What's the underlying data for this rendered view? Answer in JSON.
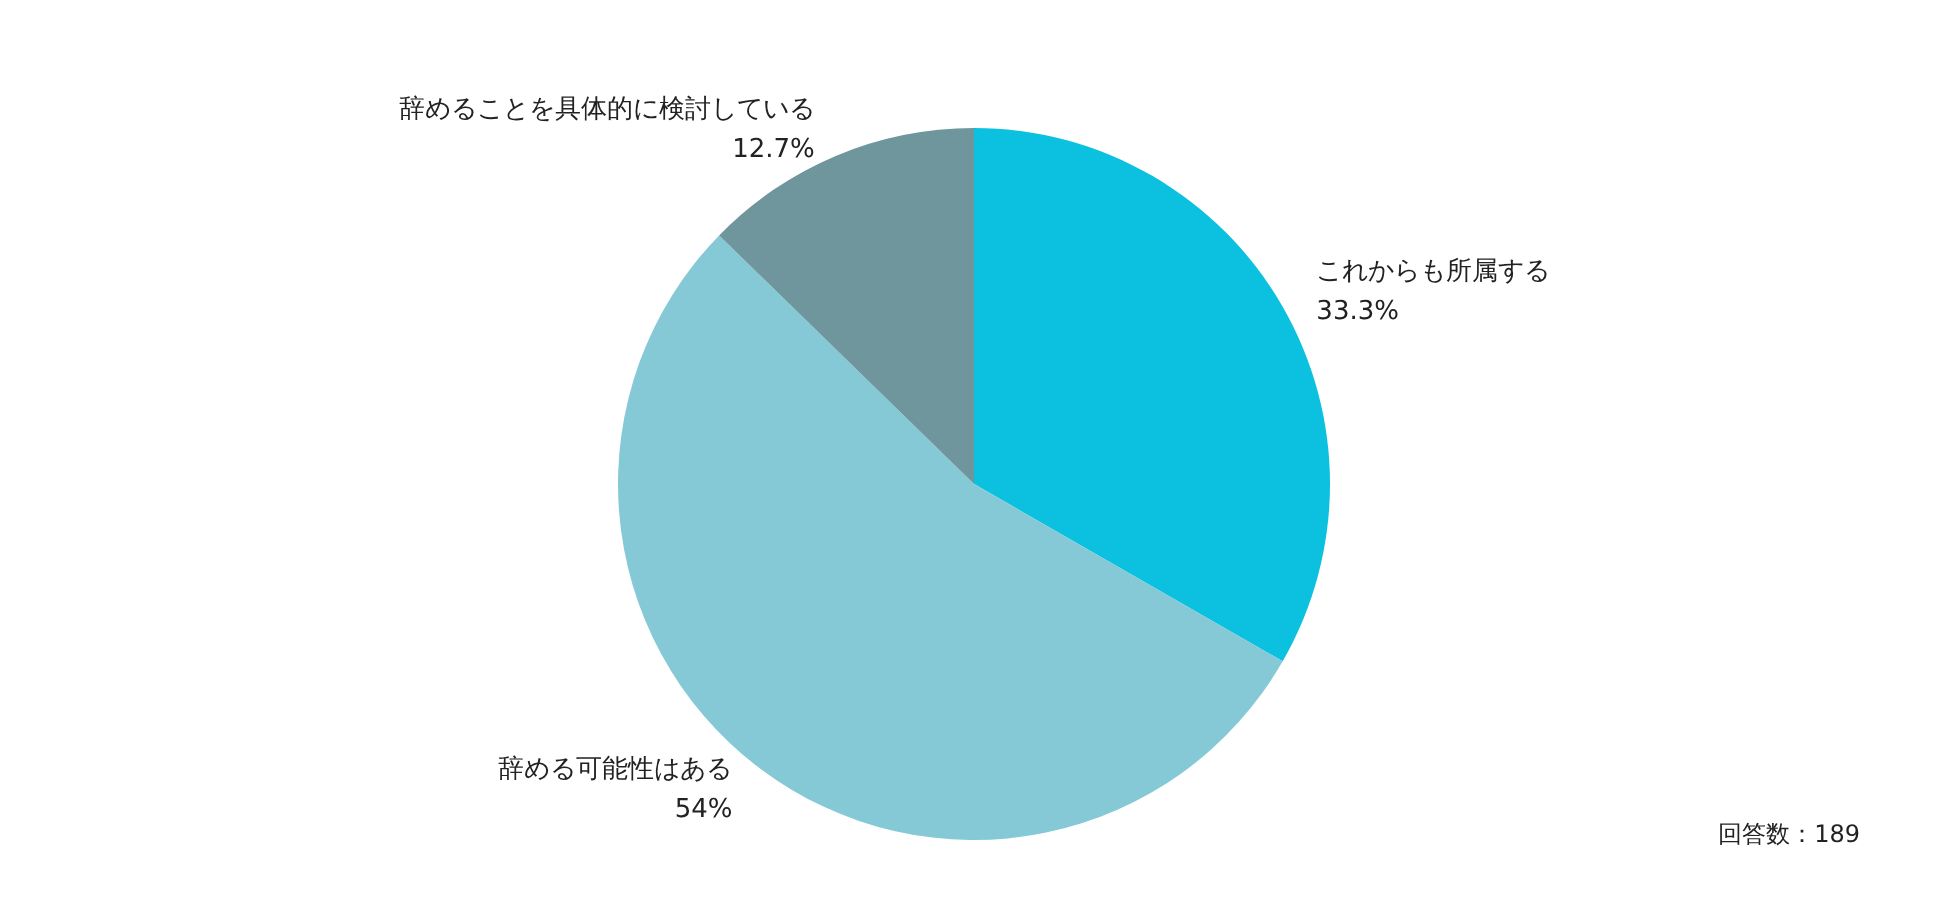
{
  "chart_data": {
    "type": "pie",
    "categories": [
      "これからも所属する",
      "辞める可能性はある",
      "辞めることを具体的に検討している"
    ],
    "values": [
      33.3,
      54,
      12.7
    ],
    "colors": [
      "#0cc1e0",
      "#86c9d6",
      "#6e969c"
    ],
    "value_labels": [
      "33.3%",
      "54%",
      "12.7%"
    ],
    "annotations": [
      "回答数：189"
    ],
    "legend": false
  }
}
